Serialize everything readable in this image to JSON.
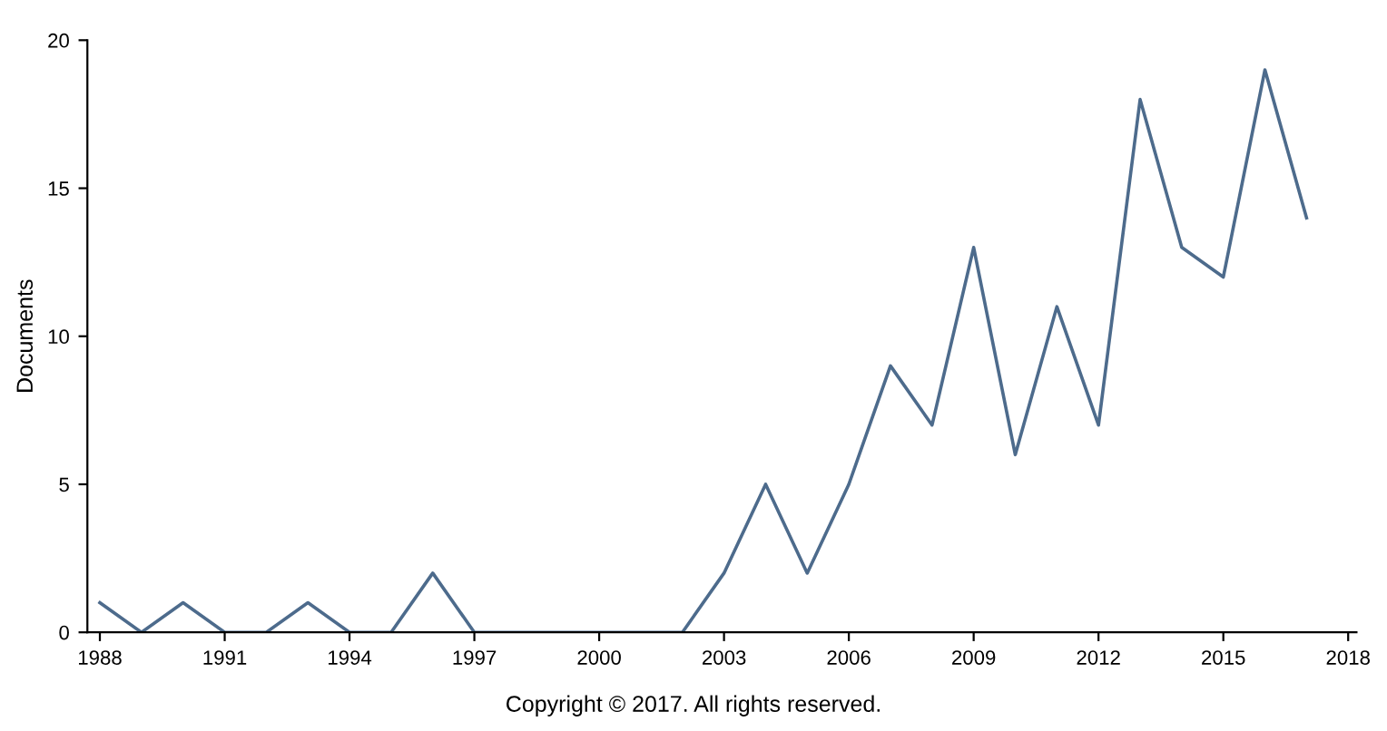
{
  "chart_data": {
    "type": "line",
    "ylabel": "Documents",
    "x": [
      1988,
      1989,
      1990,
      1991,
      1992,
      1993,
      1994,
      1995,
      1996,
      1997,
      1998,
      1999,
      2000,
      2001,
      2002,
      2003,
      2004,
      2005,
      2006,
      2007,
      2008,
      2009,
      2010,
      2011,
      2012,
      2013,
      2014,
      2015,
      2016,
      2017
    ],
    "series": [
      {
        "color": "#4d6b8c",
        "values": [
          1,
          0,
          1,
          0,
          0,
          1,
          0,
          0,
          2,
          0,
          0,
          0,
          0,
          0,
          0,
          2,
          5,
          2,
          5,
          9,
          7,
          13,
          6,
          11,
          7,
          18,
          13,
          12,
          19,
          14
        ]
      }
    ],
    "xlim": [
      1987.7,
      2018.2
    ],
    "xticks": [
      1988,
      1991,
      1994,
      1997,
      2000,
      2003,
      2006,
      2009,
      2012,
      2015,
      2018
    ],
    "ylim": [
      0,
      20
    ],
    "yticks": [
      0,
      5,
      10,
      15,
      20
    ],
    "grid": false,
    "annotations": [
      "Copyright © 2017. All rights reserved."
    ]
  }
}
